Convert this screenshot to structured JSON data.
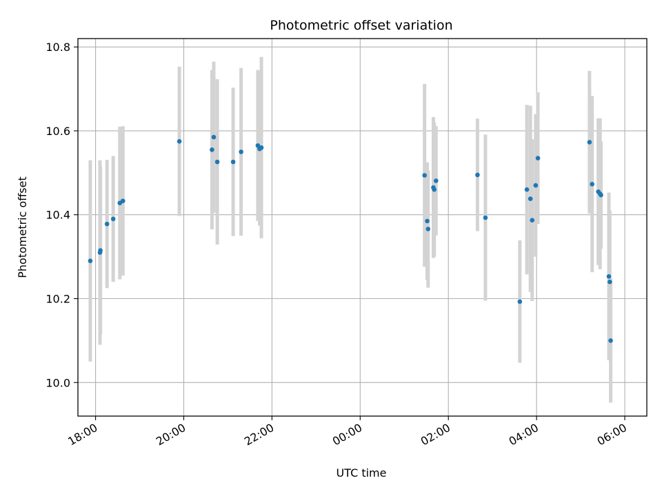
{
  "chart_data": {
    "type": "scatter",
    "title": "Photometric offset variation",
    "xlabel": "UTC time",
    "ylabel": "Photometric offset",
    "x_unit": "hours (UTC), continuing past midnight",
    "xlim": [
      17.6,
      30.5
    ],
    "ylim": [
      9.92,
      10.82
    ],
    "x_ticks": [
      {
        "value": 18,
        "label": "18:00"
      },
      {
        "value": 20,
        "label": "20:00"
      },
      {
        "value": 22,
        "label": "22:00"
      },
      {
        "value": 24,
        "label": "00:00"
      },
      {
        "value": 26,
        "label": "02:00"
      },
      {
        "value": 28,
        "label": "04:00"
      },
      {
        "value": 30,
        "label": "06:00"
      }
    ],
    "y_ticks": [
      {
        "value": 10.0,
        "label": "10.0"
      },
      {
        "value": 10.2,
        "label": "10.2"
      },
      {
        "value": 10.4,
        "label": "10.4"
      },
      {
        "value": 10.6,
        "label": "10.6"
      },
      {
        "value": 10.8,
        "label": "10.8"
      }
    ],
    "grid": true,
    "marker_color": "#1f77b4",
    "errorbar_color": "#d3d3d3",
    "points": [
      {
        "x": 17.88,
        "y": 10.29,
        "err": 0.24
      },
      {
        "x": 18.1,
        "y": 10.31,
        "err": 0.22
      },
      {
        "x": 18.11,
        "y": 10.315,
        "err": 0.2
      },
      {
        "x": 18.26,
        "y": 10.378,
        "err": 0.153
      },
      {
        "x": 18.4,
        "y": 10.39,
        "err": 0.15
      },
      {
        "x": 18.55,
        "y": 10.428,
        "err": 0.182
      },
      {
        "x": 18.62,
        "y": 10.433,
        "err": 0.178
      },
      {
        "x": 19.9,
        "y": 10.575,
        "err": 0.178
      },
      {
        "x": 20.64,
        "y": 10.555,
        "err": 0.19
      },
      {
        "x": 20.68,
        "y": 10.585,
        "err": 0.18
      },
      {
        "x": 20.76,
        "y": 10.526,
        "err": 0.197
      },
      {
        "x": 21.12,
        "y": 10.526,
        "err": 0.177
      },
      {
        "x": 21.3,
        "y": 10.55,
        "err": 0.2
      },
      {
        "x": 21.68,
        "y": 10.565,
        "err": 0.18
      },
      {
        "x": 21.72,
        "y": 10.557,
        "err": 0.183
      },
      {
        "x": 21.76,
        "y": 10.56,
        "err": 0.216
      },
      {
        "x": 25.46,
        "y": 10.494,
        "err": 0.218
      },
      {
        "x": 25.52,
        "y": 10.385,
        "err": 0.14
      },
      {
        "x": 25.54,
        "y": 10.366,
        "err": 0.14
      },
      {
        "x": 25.66,
        "y": 10.465,
        "err": 0.168
      },
      {
        "x": 25.68,
        "y": 10.46,
        "err": 0.16
      },
      {
        "x": 25.72,
        "y": 10.481,
        "err": 0.13
      },
      {
        "x": 26.66,
        "y": 10.495,
        "err": 0.134
      },
      {
        "x": 26.84,
        "y": 10.393,
        "err": 0.198
      },
      {
        "x": 27.62,
        "y": 10.193,
        "err": 0.146
      },
      {
        "x": 27.78,
        "y": 10.46,
        "err": 0.202
      },
      {
        "x": 27.86,
        "y": 10.438,
        "err": 0.222
      },
      {
        "x": 27.9,
        "y": 10.387,
        "err": 0.193
      },
      {
        "x": 27.98,
        "y": 10.47,
        "err": 0.17
      },
      {
        "x": 28.03,
        "y": 10.535,
        "err": 0.157
      },
      {
        "x": 29.2,
        "y": 10.573,
        "err": 0.17
      },
      {
        "x": 29.26,
        "y": 10.473,
        "err": 0.21
      },
      {
        "x": 29.4,
        "y": 10.455,
        "err": 0.175
      },
      {
        "x": 29.44,
        "y": 10.45,
        "err": 0.18
      },
      {
        "x": 29.46,
        "y": 10.447,
        "err": 0.128
      },
      {
        "x": 29.64,
        "y": 10.253,
        "err": 0.2
      },
      {
        "x": 29.66,
        "y": 10.24,
        "err": 0.17
      },
      {
        "x": 29.68,
        "y": 10.1,
        "err": 0.148
      }
    ]
  }
}
